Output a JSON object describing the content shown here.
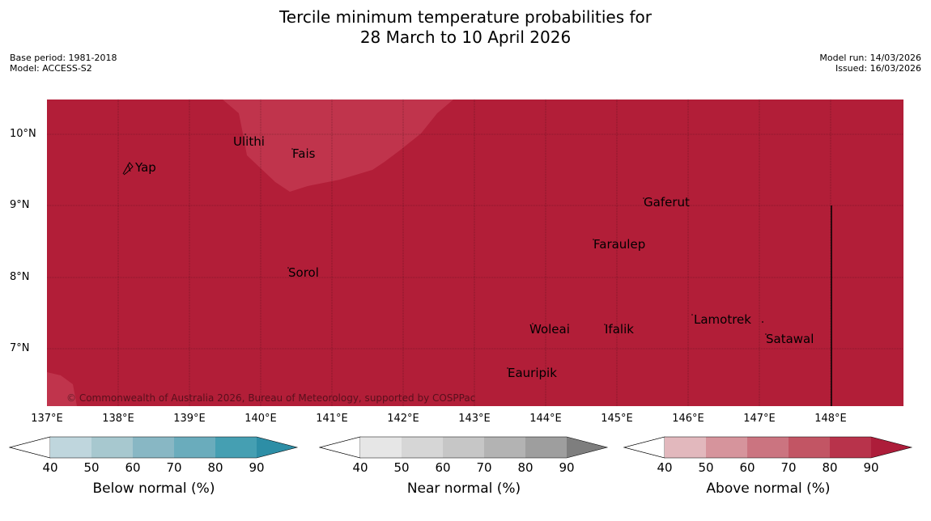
{
  "title": {
    "line1": "Tercile minimum temperature probabilities for",
    "line2": "28 March to 10 April 2026"
  },
  "meta": {
    "base_period": "Base period: 1981-2018",
    "model": "Model: ACCESS-S2",
    "model_run": "Model run: 14/03/2026",
    "issued": "Issued: 16/03/2026"
  },
  "map": {
    "lat_ticks": [
      "10°N",
      "9°N",
      "8°N",
      "7°N"
    ],
    "lon_ticks": [
      "137°E",
      "138°E",
      "139°E",
      "140°E",
      "141°E",
      "142°E",
      "143°E",
      "144°E",
      "145°E",
      "146°E",
      "147°E",
      "148°E"
    ],
    "places": [
      "Ulithi",
      "Fais",
      "Yap",
      "Gaferut",
      "Faraulep",
      "Sorol",
      "Lamotrek",
      "Woleai",
      "Ifalik",
      "Satawal",
      "Eauripik"
    ],
    "copyright": "© Commonwealth of Australia 2026, Bureau of Meteorology, supported by COSPPac",
    "colors": {
      "above_90": "#b21e38",
      "above_80": "#c0344c",
      "gridline": "#2b0a10"
    }
  },
  "legends": [
    {
      "label": "Below normal (%)",
      "ticks": [
        "40",
        "50",
        "60",
        "70",
        "80",
        "90"
      ],
      "colors": [
        "#ffffff",
        "#bfd6dd",
        "#a7c8cf",
        "#88b7c4",
        "#6aacbc",
        "#459fb2",
        "#2d8ea6"
      ]
    },
    {
      "label": "Near normal (%)",
      "ticks": [
        "40",
        "50",
        "60",
        "70",
        "80",
        "90"
      ],
      "colors": [
        "#ffffff",
        "#e6e6e6",
        "#d6d6d6",
        "#c6c6c6",
        "#b3b3b3",
        "#9e9e9e",
        "#7e7e7e"
      ]
    },
    {
      "label": "Above normal (%)",
      "ticks": [
        "40",
        "50",
        "60",
        "70",
        "80",
        "90"
      ],
      "colors": [
        "#ffffff",
        "#e2b8bd",
        "#d6949c",
        "#cb7480",
        "#c25564",
        "#b8334b",
        "#ad1d3a"
      ]
    }
  ]
}
